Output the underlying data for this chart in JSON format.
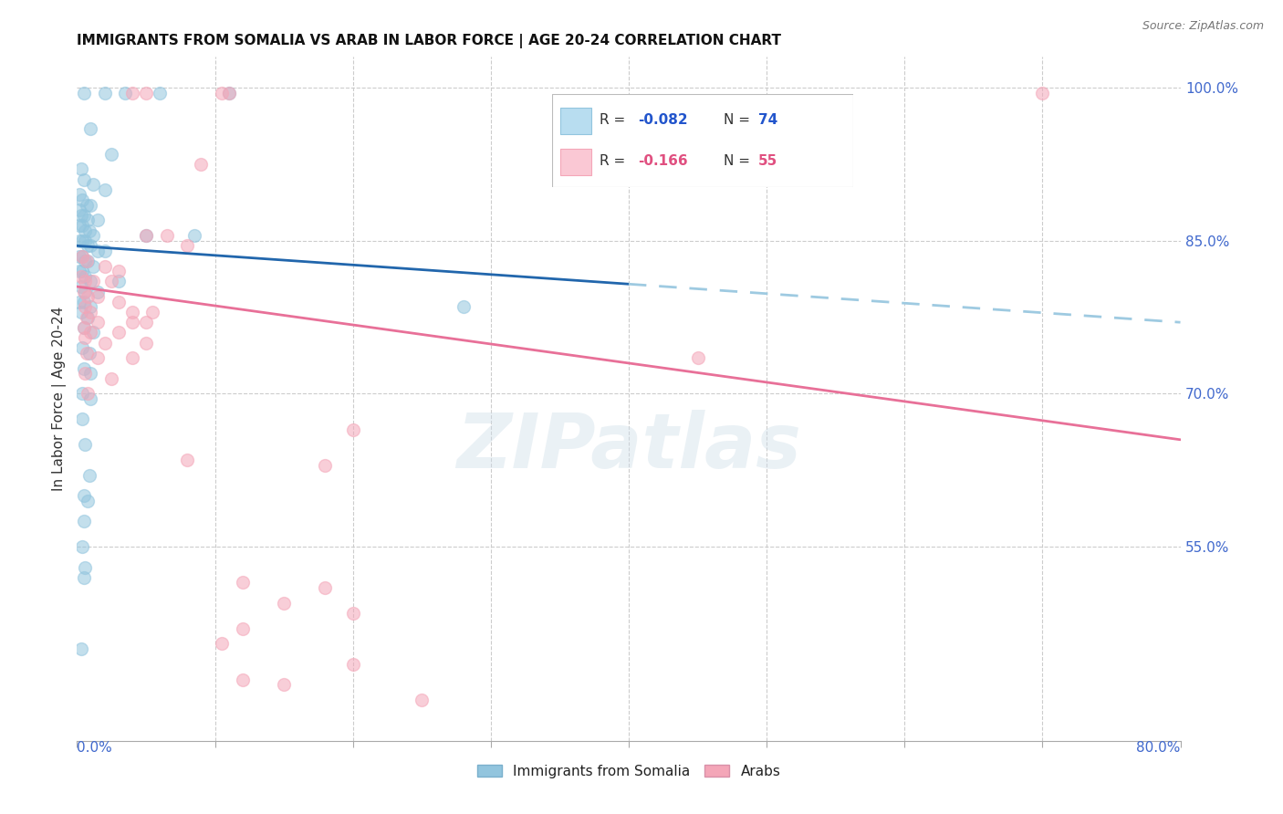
{
  "title": "IMMIGRANTS FROM SOMALIA VS ARAB IN LABOR FORCE | AGE 20-24 CORRELATION CHART",
  "source": "Source: ZipAtlas.com",
  "ylabel": "In Labor Force | Age 20-24",
  "right_yticks": [
    100.0,
    85.0,
    70.0,
    55.0
  ],
  "legend_label_somalia": "Immigrants from Somalia",
  "legend_label_arabs": "Arabs",
  "somalia_color": "#92C5DE",
  "arab_color": "#F4A6B8",
  "somalia_line_color": "#2166AC",
  "arab_line_color": "#E87098",
  "somalia_dash_color": "#9ECAE1",
  "xmin": 0.0,
  "xmax": 80.0,
  "ymin": 36.0,
  "ymax": 103.0,
  "somalia_line_x0": 0.0,
  "somalia_line_y0": 84.5,
  "somalia_line_x1": 80.0,
  "somalia_line_y1": 77.0,
  "somalia_solid_end_x": 40.0,
  "arab_line_x0": 0.0,
  "arab_line_y0": 80.5,
  "arab_line_x1": 80.0,
  "arab_line_y1": 65.5,
  "watermark": "ZIPatlas",
  "somalia_points": [
    [
      0.5,
      99.5
    ],
    [
      2.0,
      99.5
    ],
    [
      3.5,
      99.5
    ],
    [
      6.0,
      99.5
    ],
    [
      11.0,
      99.5
    ],
    [
      1.0,
      96.0
    ],
    [
      2.5,
      93.5
    ],
    [
      0.3,
      92.0
    ],
    [
      0.5,
      91.0
    ],
    [
      1.2,
      90.5
    ],
    [
      2.0,
      90.0
    ],
    [
      0.2,
      89.5
    ],
    [
      0.4,
      89.0
    ],
    [
      0.7,
      88.5
    ],
    [
      1.0,
      88.5
    ],
    [
      0.2,
      88.0
    ],
    [
      0.3,
      87.5
    ],
    [
      0.5,
      87.5
    ],
    [
      0.8,
      87.0
    ],
    [
      1.5,
      87.0
    ],
    [
      0.2,
      86.5
    ],
    [
      0.4,
      86.5
    ],
    [
      0.6,
      86.0
    ],
    [
      0.9,
      86.0
    ],
    [
      1.2,
      85.5
    ],
    [
      5.0,
      85.5
    ],
    [
      8.5,
      85.5
    ],
    [
      0.2,
      85.0
    ],
    [
      0.4,
      85.0
    ],
    [
      0.6,
      85.0
    ],
    [
      0.8,
      84.5
    ],
    [
      1.0,
      84.5
    ],
    [
      1.5,
      84.0
    ],
    [
      2.0,
      84.0
    ],
    [
      0.2,
      83.5
    ],
    [
      0.4,
      83.5
    ],
    [
      0.6,
      83.0
    ],
    [
      0.8,
      83.0
    ],
    [
      1.2,
      82.5
    ],
    [
      0.2,
      82.0
    ],
    [
      0.4,
      82.0
    ],
    [
      0.6,
      81.5
    ],
    [
      1.0,
      81.0
    ],
    [
      3.0,
      81.0
    ],
    [
      0.3,
      80.5
    ],
    [
      0.6,
      80.0
    ],
    [
      1.5,
      80.0
    ],
    [
      0.2,
      79.0
    ],
    [
      0.5,
      79.0
    ],
    [
      1.0,
      78.5
    ],
    [
      0.3,
      78.0
    ],
    [
      0.8,
      77.5
    ],
    [
      0.5,
      76.5
    ],
    [
      1.2,
      76.0
    ],
    [
      0.4,
      74.5
    ],
    [
      0.9,
      74.0
    ],
    [
      0.5,
      72.5
    ],
    [
      1.0,
      72.0
    ],
    [
      0.4,
      70.0
    ],
    [
      1.0,
      69.5
    ],
    [
      0.4,
      67.5
    ],
    [
      0.6,
      65.0
    ],
    [
      0.9,
      62.0
    ],
    [
      0.5,
      60.0
    ],
    [
      0.8,
      59.5
    ],
    [
      28.0,
      78.5
    ],
    [
      0.5,
      57.5
    ],
    [
      0.4,
      55.0
    ],
    [
      0.6,
      53.0
    ],
    [
      0.5,
      52.0
    ],
    [
      0.3,
      45.0
    ]
  ],
  "arab_points": [
    [
      4.0,
      99.5
    ],
    [
      5.0,
      99.5
    ],
    [
      10.5,
      99.5
    ],
    [
      11.0,
      99.5
    ],
    [
      70.0,
      99.5
    ],
    [
      9.0,
      92.5
    ],
    [
      5.0,
      85.5
    ],
    [
      6.5,
      85.5
    ],
    [
      8.0,
      84.5
    ],
    [
      0.4,
      83.5
    ],
    [
      0.7,
      83.0
    ],
    [
      2.0,
      82.5
    ],
    [
      3.0,
      82.0
    ],
    [
      0.3,
      81.5
    ],
    [
      0.6,
      81.0
    ],
    [
      1.2,
      81.0
    ],
    [
      2.5,
      81.0
    ],
    [
      0.5,
      80.0
    ],
    [
      0.8,
      79.5
    ],
    [
      1.5,
      79.5
    ],
    [
      3.0,
      79.0
    ],
    [
      0.6,
      78.5
    ],
    [
      1.0,
      78.0
    ],
    [
      4.0,
      78.0
    ],
    [
      5.5,
      78.0
    ],
    [
      0.7,
      77.5
    ],
    [
      1.5,
      77.0
    ],
    [
      4.0,
      77.0
    ],
    [
      5.0,
      77.0
    ],
    [
      0.5,
      76.5
    ],
    [
      1.0,
      76.0
    ],
    [
      3.0,
      76.0
    ],
    [
      0.6,
      75.5
    ],
    [
      2.0,
      75.0
    ],
    [
      5.0,
      75.0
    ],
    [
      0.7,
      74.0
    ],
    [
      1.5,
      73.5
    ],
    [
      4.0,
      73.5
    ],
    [
      45.0,
      73.5
    ],
    [
      0.6,
      72.0
    ],
    [
      2.5,
      71.5
    ],
    [
      0.8,
      70.0
    ],
    [
      20.0,
      66.5
    ],
    [
      8.0,
      63.5
    ],
    [
      18.0,
      63.0
    ],
    [
      12.0,
      51.5
    ],
    [
      18.0,
      51.0
    ],
    [
      15.0,
      49.5
    ],
    [
      20.0,
      48.5
    ],
    [
      12.0,
      47.0
    ],
    [
      10.5,
      45.5
    ],
    [
      20.0,
      43.5
    ],
    [
      12.0,
      42.0
    ],
    [
      15.0,
      41.5
    ],
    [
      25.0,
      40.0
    ]
  ]
}
